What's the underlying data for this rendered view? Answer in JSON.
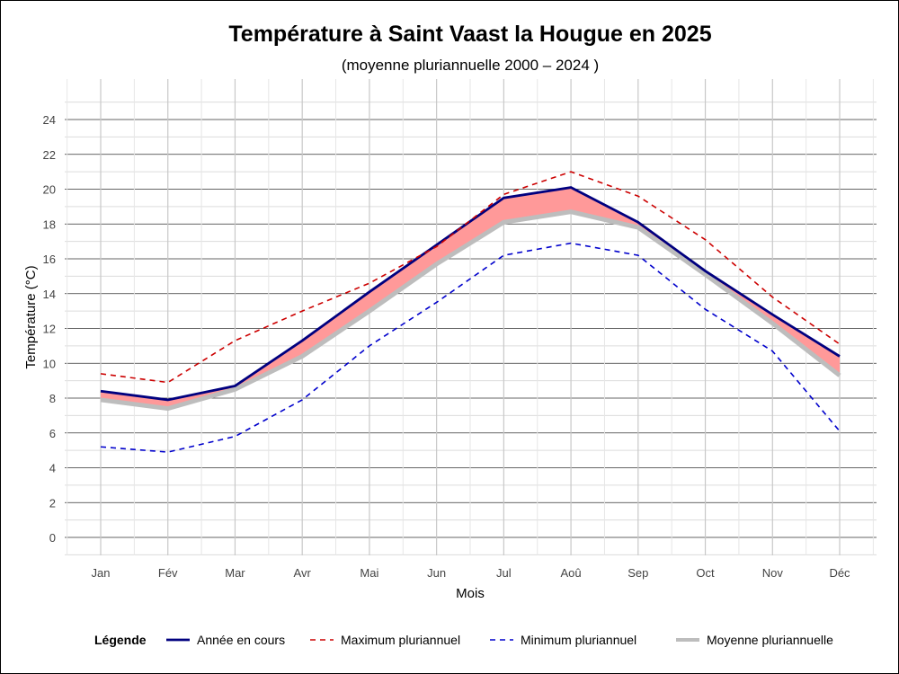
{
  "chart_data": {
    "type": "line",
    "title": "Température à Saint Vaast la Hougue en 2025",
    "subtitle": "(moyenne pluriannuelle 2000 – 2024 )",
    "xlabel": "Mois",
    "ylabel": "Température (°C)",
    "categories": [
      "Jan",
      "Fév",
      "Mar",
      "Avr",
      "Mai",
      "Jun",
      "Jul",
      "Aoû",
      "Sep",
      "Oct",
      "Nov",
      "Déc"
    ],
    "ylim": [
      -1.2,
      26
    ],
    "yticks": [
      0,
      2,
      4,
      6,
      8,
      10,
      12,
      14,
      16,
      18,
      20,
      22,
      24
    ],
    "grid": true,
    "legend_title": "Légende",
    "legend_position": "bottom",
    "series": [
      {
        "name": "Moyenne pluriannuelle",
        "color": "#bdbdbd",
        "style": "solid-thick",
        "values": [
          7.9,
          7.4,
          8.5,
          10.4,
          13.0,
          15.7,
          18.1,
          18.7,
          17.8,
          15.1,
          12.3,
          9.3
        ]
      },
      {
        "name": "Année en cours",
        "color": "#00007f",
        "style": "solid",
        "values": [
          8.4,
          7.9,
          8.7,
          11.3,
          14.1,
          16.8,
          19.5,
          20.1,
          18.1,
          15.3,
          12.8,
          10.4
        ]
      },
      {
        "name": "Maximum pluriannuel",
        "color": "#cc0000",
        "style": "dashed",
        "values": [
          9.4,
          8.9,
          11.3,
          13.0,
          14.6,
          16.7,
          19.7,
          21.0,
          19.6,
          17.1,
          13.8,
          11.1
        ]
      },
      {
        "name": "Minimum pluriannuel",
        "color": "#0000cc",
        "style": "dashed",
        "values": [
          5.2,
          4.9,
          5.8,
          7.9,
          11.0,
          13.5,
          16.2,
          16.9,
          16.2,
          13.1,
          10.7,
          6.1
        ]
      }
    ],
    "fill_between": {
      "upper": "Année en cours",
      "lower": "Moyenne pluriannuelle",
      "color": "#ff9999"
    }
  }
}
